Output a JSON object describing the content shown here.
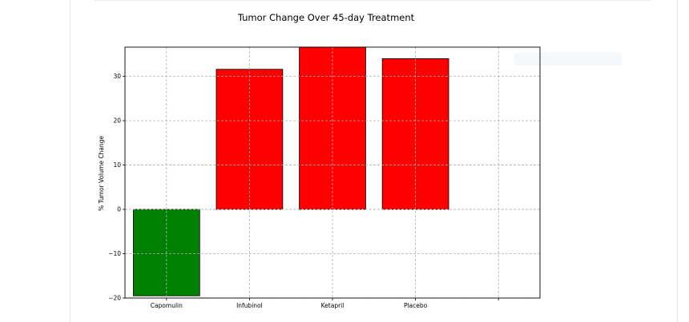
{
  "chart_data": {
    "type": "bar",
    "title": "Tumor Change Over 45-day Treatment",
    "xlabel": "",
    "ylabel": "% Tumor Volume Change",
    "categories": [
      "Capomulin",
      "Infubinol",
      "Ketapril",
      "Placebo"
    ],
    "values": [
      -19.5,
      31.6,
      36.6,
      34.0
    ],
    "bar_colors": [
      "#008000",
      "#ff0000",
      "#ff0000",
      "#ff0000"
    ],
    "ylim": [
      -20,
      36.6
    ],
    "yticks": [
      -20,
      -10,
      0,
      10,
      20,
      30
    ],
    "xlim": [
      -0.5,
      4.5
    ],
    "grid": true,
    "grid_style": "dashed"
  }
}
